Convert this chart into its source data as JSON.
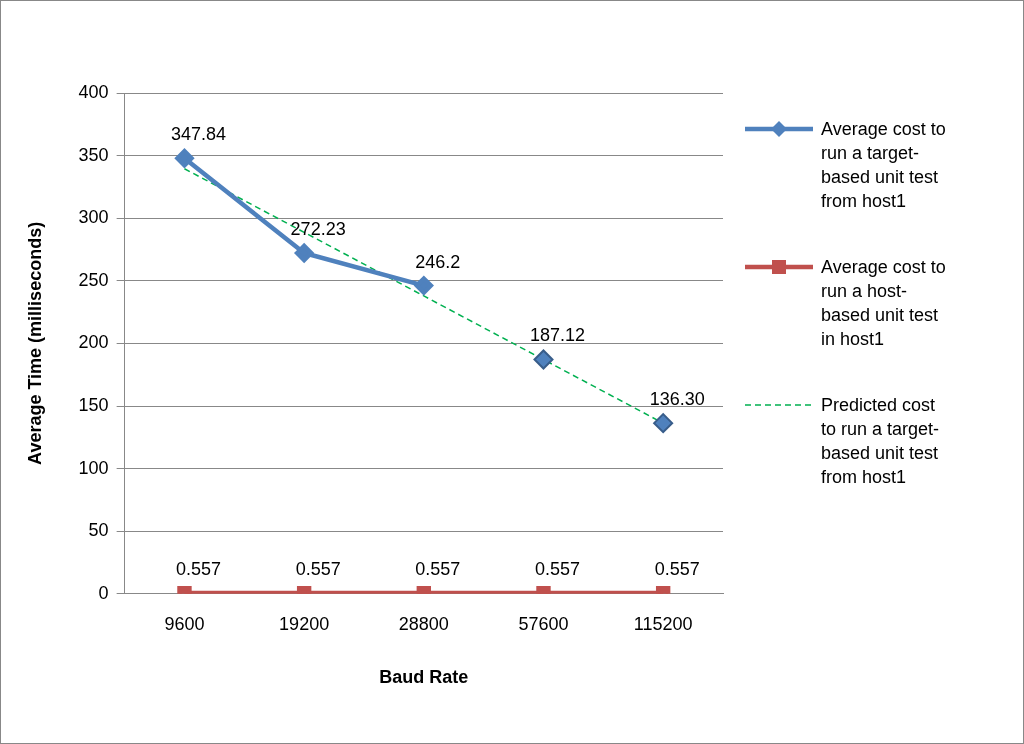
{
  "chart_data": {
    "type": "line",
    "xlabel": "Baud Rate",
    "ylabel": "Average Time (milliseconds)",
    "categories": [
      "9600",
      "19200",
      "28800",
      "57600",
      "115200"
    ],
    "series": [
      {
        "name": "Average cost to run a target-based unit test from host1",
        "color": "#4f81bd",
        "marker": "diamond",
        "values": [
          347.84,
          272.23,
          246.2,
          null,
          null
        ],
        "value_labels": [
          "347.84",
          "272.23",
          "246.2",
          null,
          null
        ]
      },
      {
        "type": "scatter",
        "color": "#4f81bd",
        "marker": "diamond",
        "values": [
          null,
          null,
          null,
          187.12,
          136.3
        ],
        "value_labels": [
          null,
          null,
          null,
          "187.12",
          "136.30"
        ]
      },
      {
        "name": "Average cost to run a host-based unit test in host1",
        "color": "#c0504d",
        "marker": "square",
        "values": [
          0.557,
          0.557,
          0.557,
          0.557,
          0.557
        ],
        "value_labels": [
          "0.557",
          "0.557",
          "0.557",
          "0.557",
          "0.557"
        ]
      },
      {
        "name": "Predicted cost to run a target-based unit test from host1",
        "color": "#00b050",
        "marker": "none",
        "line_style": "dashed",
        "values": [
          339.5,
          288.7,
          237.9,
          187.1,
          136.3
        ]
      }
    ],
    "ylim": [
      0,
      400
    ],
    "yticks": [
      0,
      50,
      100,
      150,
      200,
      250,
      300,
      350,
      400
    ],
    "grid": "y",
    "legend": "right"
  }
}
